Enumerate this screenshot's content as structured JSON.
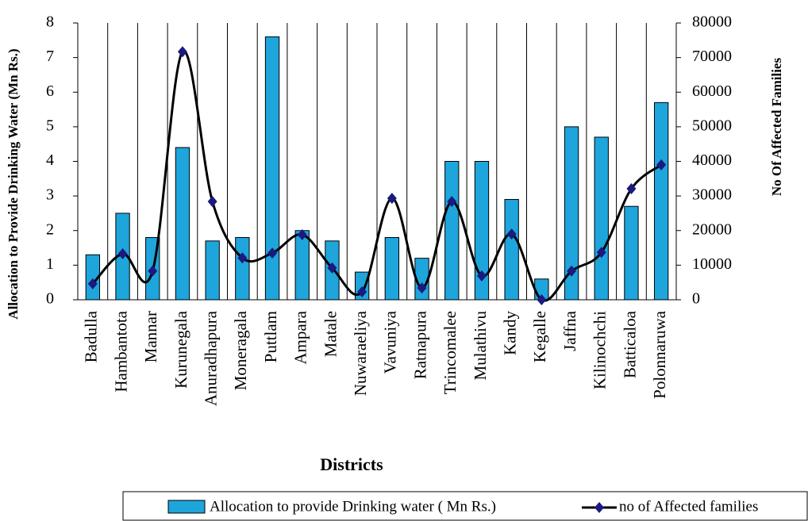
{
  "chart_data": {
    "type": "bar-line",
    "x_label": "Districts",
    "y_label": "Allocation to Provide Drinking Water (Mn Rs.)",
    "y2_label": "No Of Affected Families",
    "categories": [
      "Badulla",
      "Hambantota",
      "Mannar",
      "Kurunegala",
      "Anuradhapura",
      "Moneragala",
      "Puttlam",
      "Ampara",
      "Matale",
      "Nuwaraeliya",
      "Vavuniya",
      "Ratnapura",
      "Trincomalee",
      "Mulathivu",
      "Kandy",
      "Kegalle",
      "Jaffna",
      "Kilinochchi",
      "Batticaloa",
      "Polonnaruwa"
    ],
    "series": [
      {
        "name": "Allocation to provide Drinking water ( Mn Rs.)",
        "type": "bar",
        "color": "#1ea5dc",
        "values": [
          1.3,
          2.5,
          1.8,
          4.4,
          1.7,
          1.8,
          7.6,
          2.0,
          1.7,
          0.8,
          1.8,
          1.2,
          4.0,
          4.0,
          2.9,
          0.6,
          5.0,
          4.7,
          2.7,
          5.7
        ]
      },
      {
        "name": "no of Affected families",
        "type": "line",
        "axis": "y2",
        "color": "#000000",
        "marker_color": "#1a1a80",
        "values": [
          4600,
          13300,
          8300,
          71700,
          28400,
          12100,
          13500,
          18800,
          9200,
          2300,
          29300,
          3400,
          28400,
          6900,
          19000,
          0,
          8300,
          13700,
          32100,
          39000
        ]
      }
    ],
    "ylim": [
      0,
      8
    ],
    "yticks": [
      0,
      1,
      2,
      3,
      4,
      5,
      6,
      7,
      8
    ],
    "y2lim": [
      0,
      80000
    ],
    "y2ticks": [
      0,
      10000,
      20000,
      30000,
      40000,
      50000,
      60000,
      70000,
      80000
    ],
    "grid": "vertical",
    "legend": "bottom"
  }
}
